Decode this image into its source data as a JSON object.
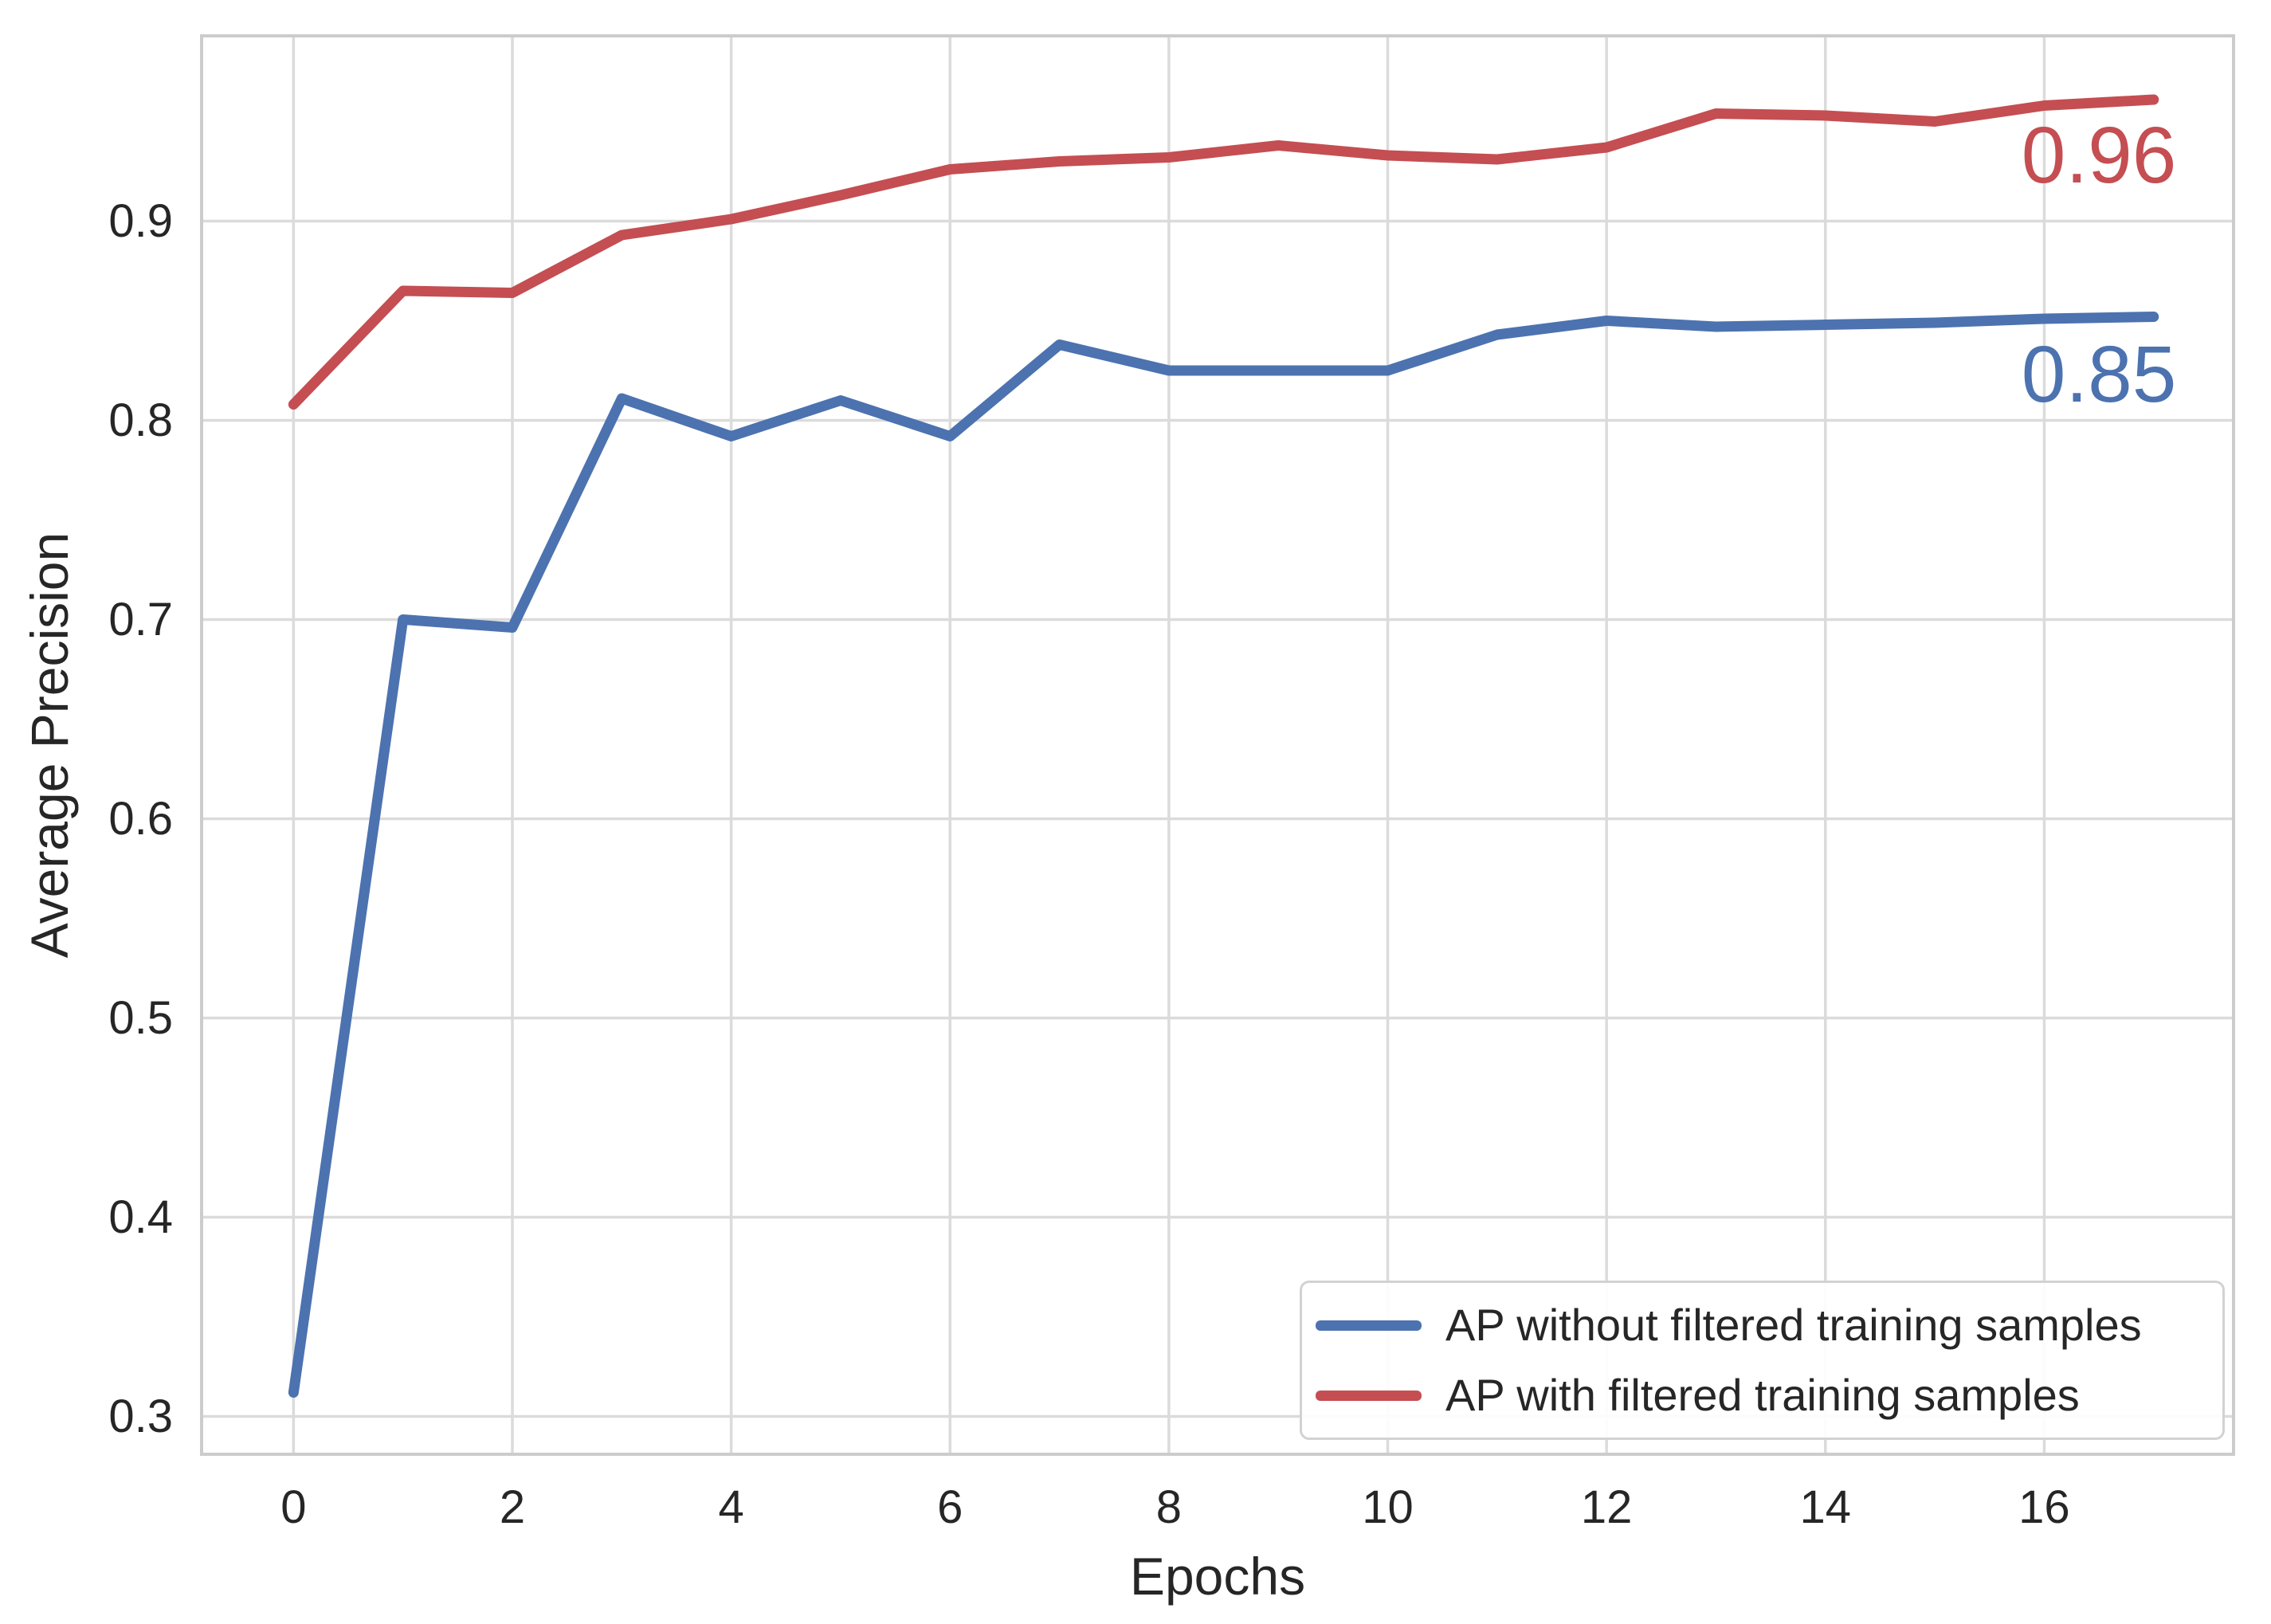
{
  "chart_data": {
    "type": "line",
    "x": [
      0,
      1,
      2,
      3,
      4,
      5,
      6,
      7,
      8,
      9,
      10,
      11,
      12,
      13,
      14,
      15,
      16,
      17
    ],
    "series": [
      {
        "name": "AP without filtered training samples",
        "color": "#4C72B0",
        "values": [
          0.312,
          0.7,
          0.696,
          0.811,
          0.792,
          0.81,
          0.792,
          0.838,
          0.825,
          0.825,
          0.825,
          0.843,
          0.85,
          0.847,
          0.848,
          0.849,
          0.851,
          0.852
        ]
      },
      {
        "name": "AP with filtered training samples",
        "color": "#C44E52",
        "values": [
          0.808,
          0.865,
          0.864,
          0.893,
          0.901,
          0.913,
          0.926,
          0.93,
          0.932,
          0.938,
          0.933,
          0.931,
          0.937,
          0.954,
          0.953,
          0.95,
          0.958,
          0.961
        ]
      }
    ],
    "title": "",
    "xlabel": "Epochs",
    "ylabel": "Average Precision",
    "x_ticks": [
      0,
      2,
      4,
      6,
      8,
      10,
      12,
      14,
      16
    ],
    "y_ticks": [
      0.3,
      0.4,
      0.5,
      0.6,
      0.7,
      0.8,
      0.9
    ],
    "xlim": [
      -0.84,
      17.73
    ],
    "ylim": [
      0.281,
      0.993
    ],
    "grid": true,
    "grid_color": "#dbdbdb",
    "spine_color": "#cccccc",
    "legend_position": "lower right",
    "annotations": [
      {
        "text": "0.96",
        "color": "#C44E52",
        "x": 16.5,
        "y": 0.933
      },
      {
        "text": "0.85",
        "color": "#4C72B0",
        "x": 16.5,
        "y": 0.823
      }
    ]
  }
}
